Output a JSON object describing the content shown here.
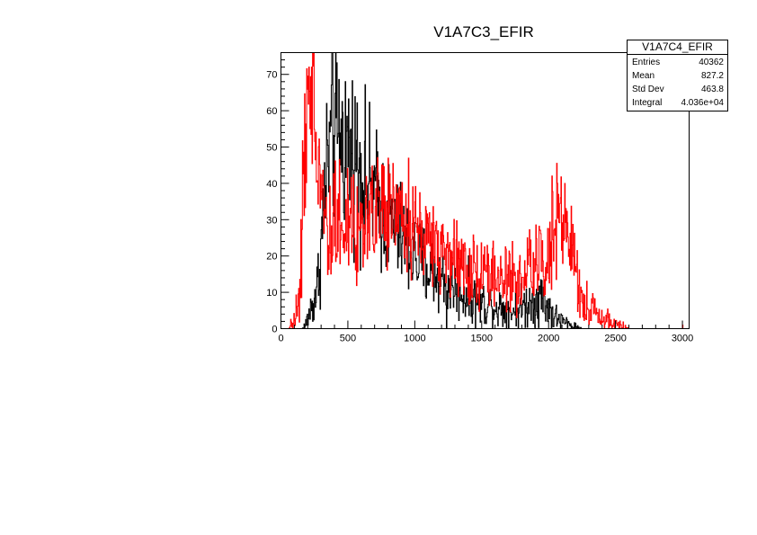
{
  "chart_data": {
    "type": "histogram",
    "title": "V1A7C3_EFIR",
    "xlabel": "",
    "ylabel": "",
    "xlim": [
      0,
      3050
    ],
    "ylim": [
      0,
      76
    ],
    "x_ticks": [
      "0",
      "500",
      "1000",
      "1500",
      "2000",
      "2500",
      "3000"
    ],
    "y_ticks": [
      "0",
      "10",
      "20",
      "30",
      "40",
      "50",
      "60",
      "70"
    ],
    "grid": false,
    "bin_width": 4,
    "series": [
      {
        "color": "#000000",
        "envelope": [
          [
            0,
            0
          ],
          [
            160,
            0
          ],
          [
            185,
            1
          ],
          [
            210,
            4
          ],
          [
            240,
            7
          ],
          [
            270,
            11
          ],
          [
            290,
            18
          ],
          [
            310,
            28
          ],
          [
            330,
            40
          ],
          [
            355,
            48
          ],
          [
            380,
            52
          ],
          [
            420,
            53
          ],
          [
            460,
            52
          ],
          [
            500,
            50
          ],
          [
            550,
            48
          ],
          [
            600,
            45
          ],
          [
            650,
            40
          ],
          [
            700,
            37
          ],
          [
            750,
            33
          ],
          [
            800,
            30
          ],
          [
            850,
            28
          ],
          [
            900,
            25
          ],
          [
            950,
            22
          ],
          [
            1000,
            20
          ],
          [
            1050,
            18
          ],
          [
            1100,
            16
          ],
          [
            1150,
            15
          ],
          [
            1200,
            14
          ],
          [
            1250,
            12
          ],
          [
            1300,
            11
          ],
          [
            1350,
            10
          ],
          [
            1400,
            9
          ],
          [
            1450,
            8
          ],
          [
            1500,
            7
          ],
          [
            1550,
            7
          ],
          [
            1600,
            6
          ],
          [
            1650,
            6
          ],
          [
            1700,
            5
          ],
          [
            1750,
            5
          ],
          [
            1800,
            6
          ],
          [
            1850,
            7
          ],
          [
            1900,
            8
          ],
          [
            1930,
            9
          ],
          [
            1960,
            8
          ],
          [
            2000,
            6
          ],
          [
            2050,
            3
          ],
          [
            2100,
            2
          ],
          [
            2150,
            1
          ],
          [
            2200,
            0.5
          ],
          [
            2250,
            0
          ],
          [
            3050,
            0
          ]
        ],
        "noise": 0.18,
        "spikes": [
          [
            384,
            76
          ],
          [
            1237,
            0
          ]
        ]
      },
      {
        "color": "#ff0000",
        "envelope": [
          [
            0,
            0
          ],
          [
            60,
            0
          ],
          [
            85,
            1
          ],
          [
            110,
            4
          ],
          [
            140,
            12
          ],
          [
            160,
            28
          ],
          [
            180,
            45
          ],
          [
            200,
            57
          ],
          [
            220,
            62
          ],
          [
            240,
            60
          ],
          [
            260,
            55
          ],
          [
            280,
            47
          ],
          [
            300,
            40
          ],
          [
            330,
            35
          ],
          [
            360,
            32
          ],
          [
            400,
            30
          ],
          [
            450,
            29
          ],
          [
            500,
            28
          ],
          [
            550,
            28
          ],
          [
            600,
            29
          ],
          [
            650,
            30
          ],
          [
            700,
            31
          ],
          [
            750,
            32
          ],
          [
            800,
            32
          ],
          [
            850,
            31
          ],
          [
            900,
            30
          ],
          [
            950,
            29
          ],
          [
            1000,
            28
          ],
          [
            1100,
            25
          ],
          [
            1200,
            22
          ],
          [
            1300,
            19
          ],
          [
            1400,
            17
          ],
          [
            1500,
            15
          ],
          [
            1600,
            14
          ],
          [
            1700,
            13
          ],
          [
            1800,
            14
          ],
          [
            1900,
            17
          ],
          [
            1950,
            20
          ],
          [
            2000,
            24
          ],
          [
            2050,
            28
          ],
          [
            2100,
            29
          ],
          [
            2150,
            25
          ],
          [
            2200,
            16
          ],
          [
            2250,
            9
          ],
          [
            2300,
            6
          ],
          [
            2350,
            4
          ],
          [
            2400,
            3
          ],
          [
            2450,
            2
          ],
          [
            2500,
            1
          ],
          [
            2550,
            0.5
          ],
          [
            2600,
            0
          ],
          [
            3050,
            0
          ]
        ],
        "noise": 0.2,
        "spikes": [
          [
            210,
            72
          ],
          [
            230,
            72
          ],
          [
            2065,
            40
          ],
          [
            3000,
            1
          ]
        ]
      }
    ]
  },
  "stats_box": {
    "title": "V1A7C4_EFIR",
    "rows": [
      {
        "label": "Entries",
        "value": "40362"
      },
      {
        "label": "Mean",
        "value": "827.2"
      },
      {
        "label": "Std Dev",
        "value": "463.8"
      },
      {
        "label": "Integral",
        "value": "4.036e+04"
      }
    ]
  }
}
